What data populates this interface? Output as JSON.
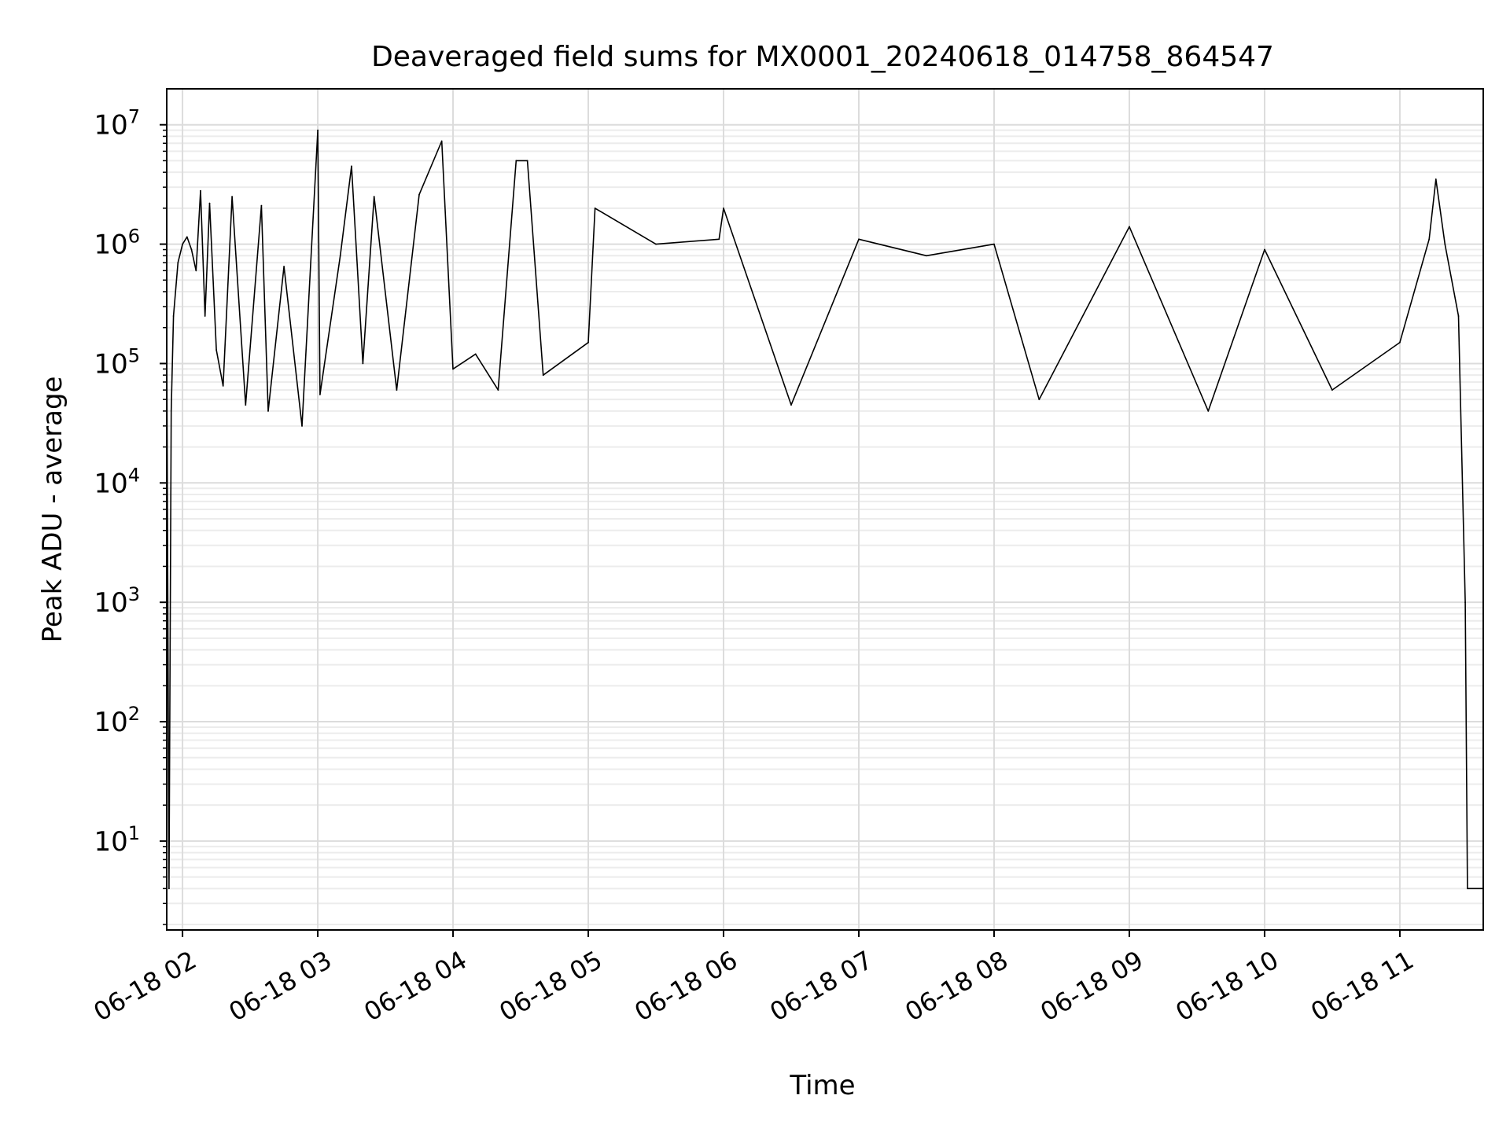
{
  "chart_data": {
    "type": "line",
    "title": "Deaveraged field sums for MX0001_20240618_014758_864547",
    "xlabel": "Time",
    "ylabel": "Peak ADU - average",
    "yscale": "log",
    "ylim": [
      1.8,
      20000000
    ],
    "xlim": [
      "2024-06-18T01:53",
      "2024-06-18T11:37"
    ],
    "grid": "major and minor",
    "legend": "none",
    "line_color": "#000000",
    "x_ticks": [
      {
        "value": "2024-06-18T02:00",
        "label": "06-18 02"
      },
      {
        "value": "2024-06-18T03:00",
        "label": "06-18 03"
      },
      {
        "value": "2024-06-18T04:00",
        "label": "06-18 04"
      },
      {
        "value": "2024-06-18T05:00",
        "label": "06-18 05"
      },
      {
        "value": "2024-06-18T06:00",
        "label": "06-18 06"
      },
      {
        "value": "2024-06-18T07:00",
        "label": "06-18 07"
      },
      {
        "value": "2024-06-18T08:00",
        "label": "06-18 08"
      },
      {
        "value": "2024-06-18T09:00",
        "label": "06-18 09"
      },
      {
        "value": "2024-06-18T10:00",
        "label": "06-18 10"
      },
      {
        "value": "2024-06-18T11:00",
        "label": "06-18 11"
      }
    ],
    "y_ticks": [
      {
        "value": 10,
        "base": "10",
        "exp": "1"
      },
      {
        "value": 100,
        "base": "10",
        "exp": "2"
      },
      {
        "value": 1000,
        "base": "10",
        "exp": "3"
      },
      {
        "value": 10000,
        "base": "10",
        "exp": "4"
      },
      {
        "value": 100000,
        "base": "10",
        "exp": "5"
      },
      {
        "value": 1000000,
        "base": "10",
        "exp": "6"
      },
      {
        "value": 10000000,
        "base": "10",
        "exp": "7"
      }
    ],
    "series": [
      {
        "points": [
          [
            "2024-06-18T01:53",
            180000
          ],
          [
            "2024-06-18T01:54",
            4
          ],
          [
            "2024-06-18T01:55",
            40000
          ],
          [
            "2024-06-18T01:56",
            250000
          ],
          [
            "2024-06-18T01:58",
            700000
          ],
          [
            "2024-06-18T02:00",
            1000000
          ],
          [
            "2024-06-18T02:02",
            1150000
          ],
          [
            "2024-06-18T02:04",
            900000
          ],
          [
            "2024-06-18T02:06",
            600000
          ],
          [
            "2024-06-18T02:08",
            2800000
          ],
          [
            "2024-06-18T02:10",
            250000
          ],
          [
            "2024-06-18T02:12",
            2200000
          ],
          [
            "2024-06-18T02:15",
            130000
          ],
          [
            "2024-06-18T02:18",
            65000
          ],
          [
            "2024-06-18T02:22",
            2500000
          ],
          [
            "2024-06-18T02:28",
            45000
          ],
          [
            "2024-06-18T02:35",
            2100000
          ],
          [
            "2024-06-18T02:38",
            40000
          ],
          [
            "2024-06-18T02:45",
            650000
          ],
          [
            "2024-06-18T02:53",
            30000
          ],
          [
            "2024-06-18T03:00",
            9000000
          ],
          [
            "2024-06-18T03:01",
            55000
          ],
          [
            "2024-06-18T03:10",
            800000
          ],
          [
            "2024-06-18T03:15",
            4500000
          ],
          [
            "2024-06-18T03:20",
            100000
          ],
          [
            "2024-06-18T03:25",
            2500000
          ],
          [
            "2024-06-18T03:35",
            60000
          ],
          [
            "2024-06-18T03:45",
            2600000
          ],
          [
            "2024-06-18T03:55",
            7300000
          ],
          [
            "2024-06-18T04:00",
            90000
          ],
          [
            "2024-06-18T04:10",
            120000
          ],
          [
            "2024-06-18T04:20",
            60000
          ],
          [
            "2024-06-18T04:28",
            5000000
          ],
          [
            "2024-06-18T04:33",
            5000000
          ],
          [
            "2024-06-18T04:40",
            80000
          ],
          [
            "2024-06-18T05:00",
            150000
          ],
          [
            "2024-06-18T05:03",
            2000000
          ],
          [
            "2024-06-18T05:30",
            1000000
          ],
          [
            "2024-06-18T05:58",
            1100000
          ],
          [
            "2024-06-18T06:00",
            2000000
          ],
          [
            "2024-06-18T06:30",
            45000
          ],
          [
            "2024-06-18T07:00",
            1100000
          ],
          [
            "2024-06-18T07:30",
            800000
          ],
          [
            "2024-06-18T08:00",
            1000000
          ],
          [
            "2024-06-18T08:20",
            50000
          ],
          [
            "2024-06-18T09:00",
            1400000
          ],
          [
            "2024-06-18T09:35",
            40000
          ],
          [
            "2024-06-18T10:00",
            900000
          ],
          [
            "2024-06-18T10:30",
            60000
          ],
          [
            "2024-06-18T11:00",
            150000
          ],
          [
            "2024-06-18T11:13",
            1100000
          ],
          [
            "2024-06-18T11:16",
            3500000
          ],
          [
            "2024-06-18T11:20",
            1000000
          ],
          [
            "2024-06-18T11:26",
            250000
          ],
          [
            "2024-06-18T11:29",
            1000
          ],
          [
            "2024-06-18T11:30",
            4
          ],
          [
            "2024-06-18T11:37",
            4
          ]
        ]
      }
    ]
  }
}
